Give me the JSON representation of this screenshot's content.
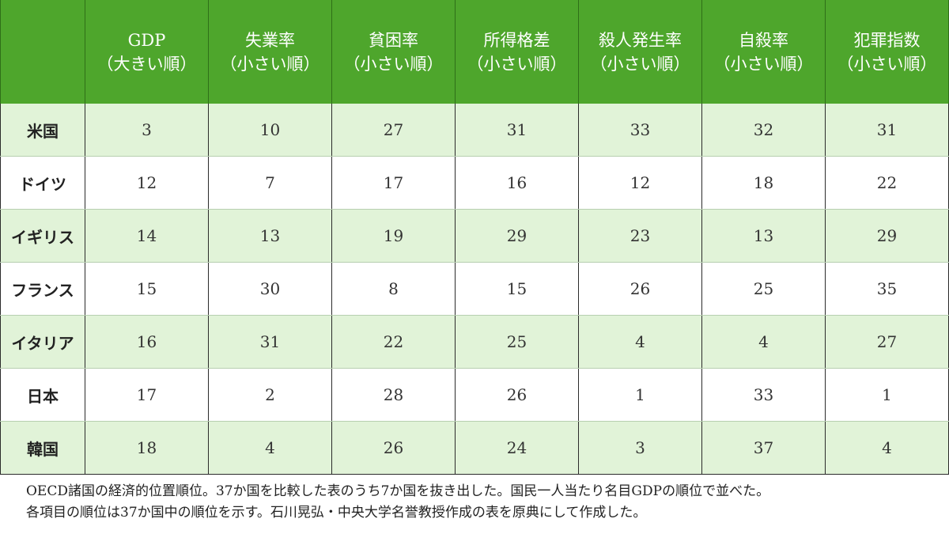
{
  "chart_data": {
    "type": "table",
    "corner": "",
    "columns": [
      {
        "line1": "GDP",
        "line2": "（大きい順）"
      },
      {
        "line1": "失業率",
        "line2": "（小さい順）"
      },
      {
        "line1": "貧困率",
        "line2": "（小さい順）"
      },
      {
        "line1": "所得格差",
        "line2": "（小さい順）"
      },
      {
        "line1": "殺人発生率",
        "line2": "（小さい順）"
      },
      {
        "line1": "自殺率",
        "line2": "（小さい順）"
      },
      {
        "line1": "犯罪指数",
        "line2": "（小さい順）"
      }
    ],
    "rows": [
      {
        "country": "米国",
        "values": [
          3,
          10,
          27,
          31,
          33,
          32,
          31
        ]
      },
      {
        "country": "ドイツ",
        "values": [
          12,
          7,
          17,
          16,
          12,
          18,
          22
        ]
      },
      {
        "country": "イギリス",
        "values": [
          14,
          13,
          19,
          29,
          23,
          13,
          29
        ]
      },
      {
        "country": "フランス",
        "values": [
          15,
          30,
          8,
          15,
          26,
          25,
          35
        ]
      },
      {
        "country": "イタリア",
        "values": [
          16,
          31,
          22,
          25,
          4,
          4,
          27
        ]
      },
      {
        "country": "日本",
        "values": [
          17,
          2,
          28,
          26,
          1,
          33,
          1
        ]
      },
      {
        "country": "韓国",
        "values": [
          18,
          4,
          26,
          24,
          3,
          37,
          4
        ]
      }
    ]
  },
  "caption": {
    "line1": "OECD諸国の経済的位置順位。37か国を比較した表のうち7か国を抜き出した。国民一人当たり名目GDPの順位で並べた。",
    "line2": "各項目の順位は37か国中の順位を示す。石川晃弘・中央大学名誉教授作成の表を原典にして作成した。"
  },
  "colors": {
    "header_bg": "#4ea62c",
    "row_alt_bg": "#e1f3d8",
    "row_bg": "#ffffff"
  }
}
